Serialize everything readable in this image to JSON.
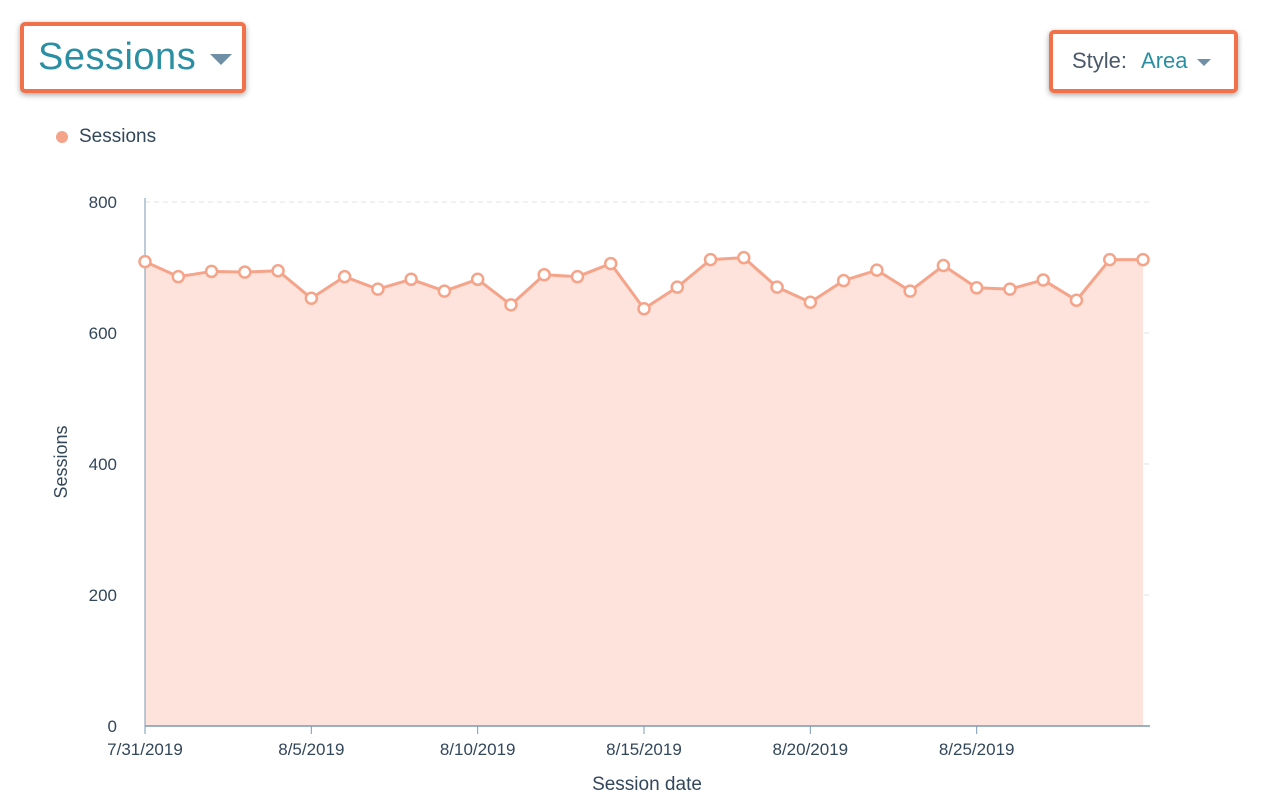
{
  "header": {
    "metric_label": "Sessions",
    "style_label": "Style:",
    "style_value": "Area"
  },
  "legend": {
    "label": "Sessions"
  },
  "colors": {
    "accent": "#2b8fa3",
    "highlight_border": "#f0714a",
    "series_line": "#f5a48a",
    "series_fill": "#fde3dc",
    "axis": "#7c98b6",
    "grid": "#dfe3eb"
  },
  "icons": {
    "metric_dropdown": "caret-down-icon",
    "style_dropdown": "caret-down-icon"
  },
  "chart_data": {
    "type": "area",
    "title": "",
    "xlabel": "Session date",
    "ylabel": "Sessions",
    "ylim": [
      0,
      800
    ],
    "yticks": [
      0,
      200,
      400,
      600,
      800
    ],
    "grid": true,
    "legend_position": "top-left",
    "x": [
      "7/31/2019",
      "8/1/2019",
      "8/2/2019",
      "8/3/2019",
      "8/4/2019",
      "8/5/2019",
      "8/6/2019",
      "8/7/2019",
      "8/8/2019",
      "8/9/2019",
      "8/10/2019",
      "8/11/2019",
      "8/12/2019",
      "8/13/2019",
      "8/14/2019",
      "8/15/2019",
      "8/16/2019",
      "8/17/2019",
      "8/18/2019",
      "8/19/2019",
      "8/20/2019",
      "8/21/2019",
      "8/22/2019",
      "8/23/2019",
      "8/24/2019",
      "8/25/2019",
      "8/26/2019",
      "8/27/2019",
      "8/28/2019",
      "8/29/2019",
      "8/30/2019"
    ],
    "xtick_labels": [
      "7/31/2019",
      "8/5/2019",
      "8/10/2019",
      "8/15/2019",
      "8/20/2019",
      "8/25/2019"
    ],
    "series": [
      {
        "name": "Sessions",
        "values": [
          709,
          686,
          694,
          693,
          695,
          653,
          686,
          667,
          682,
          664,
          682,
          643,
          689,
          686,
          706,
          637,
          670,
          712,
          715,
          670,
          647,
          680,
          696,
          664,
          703,
          669,
          667,
          681,
          650,
          712,
          712
        ]
      }
    ]
  }
}
